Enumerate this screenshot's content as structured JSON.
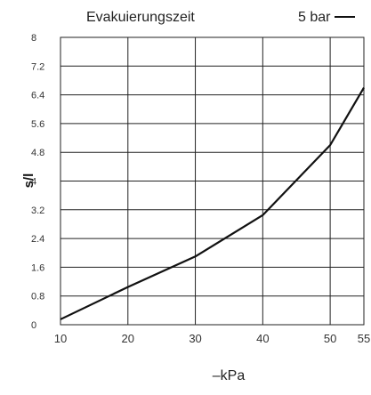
{
  "chart_data": {
    "type": "line",
    "title": "Evakuierungszeit",
    "xlabel": "–kPa",
    "ylabel": "s/l",
    "legend_position": "top-right",
    "grid": true,
    "x_ticks": [
      "10",
      "20",
      "30",
      "40",
      "50",
      "55"
    ],
    "y_ticks": [
      "0",
      "0.8",
      "1.6",
      "2.4",
      "3.2",
      "4",
      "4.8",
      "5.6",
      "6.4",
      "7.2",
      "8"
    ],
    "xlim": [
      10,
      55
    ],
    "ylim": [
      0,
      8
    ],
    "series": [
      {
        "name": "5 bar",
        "color": "#111111",
        "points": [
          {
            "x": 10,
            "y": 0.15
          },
          {
            "x": 20,
            "y": 1.05
          },
          {
            "x": 30,
            "y": 1.9
          },
          {
            "x": 40,
            "y": 3.05
          },
          {
            "x": 50,
            "y": 5.0
          },
          {
            "x": 55,
            "y": 6.6
          }
        ]
      }
    ]
  }
}
